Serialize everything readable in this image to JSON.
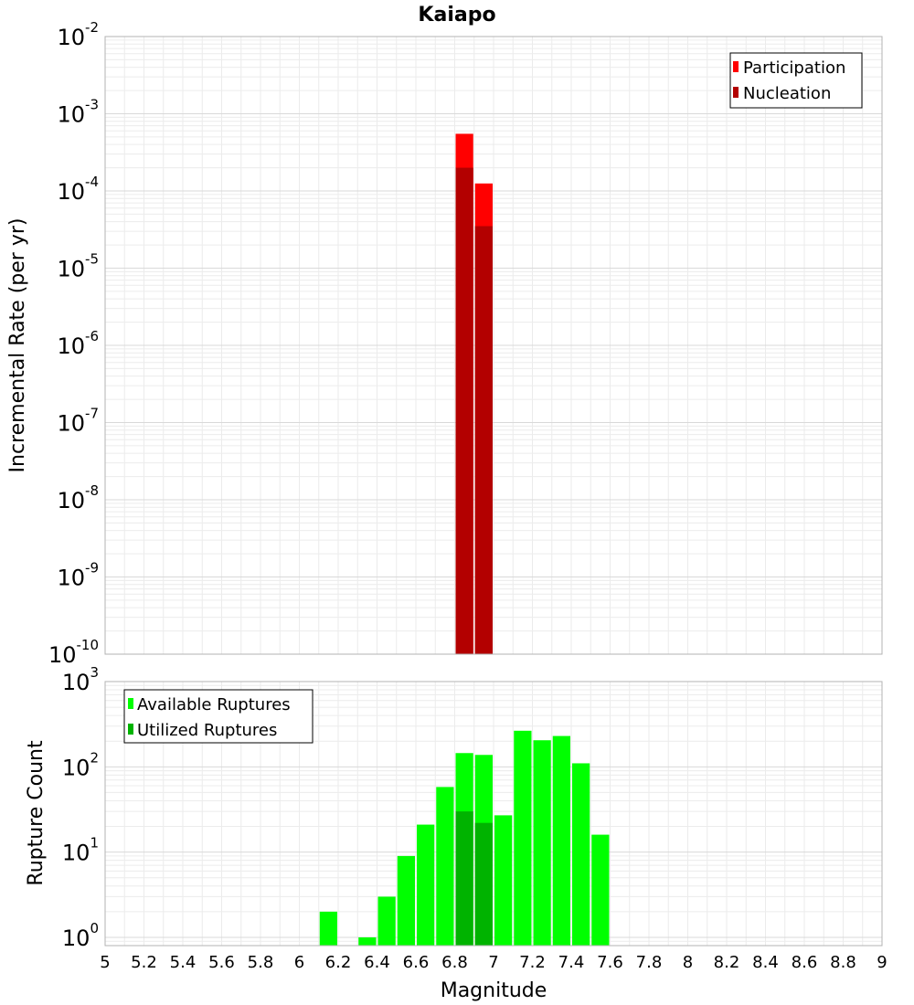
{
  "title": "Kaiapo",
  "chart_data": [
    {
      "type": "bar",
      "panel": "top",
      "ylabel": "Incremental Rate (per yr)",
      "xlabel": "",
      "xlim": [
        5,
        9
      ],
      "ylim": [
        1e-10,
        0.01
      ],
      "y_scale": "log",
      "bin_width": 0.1,
      "y_ticks": [
        {
          "base": "10",
          "exp": "-2",
          "value": 0.01
        },
        {
          "base": "10",
          "exp": "-3",
          "value": 0.001
        },
        {
          "base": "10",
          "exp": "-4",
          "value": 0.0001
        },
        {
          "base": "10",
          "exp": "-5",
          "value": 1e-05
        },
        {
          "base": "10",
          "exp": "-6",
          "value": 1e-06
        },
        {
          "base": "10",
          "exp": "-7",
          "value": 1e-07
        },
        {
          "base": "10",
          "exp": "-8",
          "value": 1e-08
        },
        {
          "base": "10",
          "exp": "-9",
          "value": 1e-09
        },
        {
          "base": "10",
          "exp": "-10",
          "value": 1e-10
        }
      ],
      "legend": {
        "position": "top-right"
      },
      "series": [
        {
          "name": "Participation",
          "color": "#ff0000",
          "x": [
            6.85,
            6.95
          ],
          "values": [
            0.00055,
            0.000125
          ]
        },
        {
          "name": "Nucleation",
          "color": "#b30000",
          "x": [
            6.85,
            6.95
          ],
          "values": [
            0.0002,
            3.5e-05
          ]
        }
      ],
      "grid": true
    },
    {
      "type": "bar",
      "panel": "bottom",
      "ylabel": "Rupture Count",
      "xlabel": "Magnitude",
      "xlim": [
        5,
        9
      ],
      "ylim": [
        0.8,
        1000
      ],
      "y_scale": "log",
      "bin_width": 0.1,
      "x_ticks": [
        "5",
        "5.2",
        "5.4",
        "5.6",
        "5.8",
        "6",
        "6.2",
        "6.4",
        "6.6",
        "6.8",
        "7",
        "7.2",
        "7.4",
        "7.6",
        "7.8",
        "8",
        "8.2",
        "8.4",
        "8.6",
        "8.8",
        "9"
      ],
      "y_ticks": [
        {
          "base": "10",
          "exp": "3",
          "value": 1000
        },
        {
          "base": "10",
          "exp": "2",
          "value": 100
        },
        {
          "base": "10",
          "exp": "1",
          "value": 10
        },
        {
          "base": "10",
          "exp": "0",
          "value": 1
        }
      ],
      "legend": {
        "position": "top-left"
      },
      "series": [
        {
          "name": "Available Ruptures",
          "color": "#00ff00",
          "x": [
            6.15,
            6.35,
            6.45,
            6.55,
            6.65,
            6.75,
            6.85,
            6.95,
            7.05,
            7.15,
            7.25,
            7.35,
            7.45,
            7.55
          ],
          "values": [
            2,
            1,
            3,
            9,
            21,
            58,
            145,
            138,
            27,
            265,
            205,
            230,
            110,
            16
          ]
        },
        {
          "name": "Utilized Ruptures",
          "color": "#00b300",
          "x": [
            6.85,
            6.95
          ],
          "values": [
            30,
            22
          ]
        }
      ],
      "grid": true
    }
  ]
}
